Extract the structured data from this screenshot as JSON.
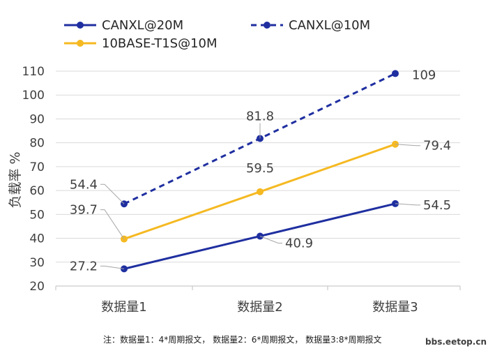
{
  "chart_data": {
    "type": "line",
    "title": "",
    "xlabel": "",
    "ylabel": "负载率 %",
    "categories": [
      "数据量1",
      "数据量2",
      "数据量3"
    ],
    "ylim": [
      20,
      110
    ],
    "yticks": [
      20,
      30,
      40,
      50,
      60,
      70,
      80,
      90,
      100,
      110
    ],
    "grid": "horizontal",
    "legend_position": "top-left",
    "series": [
      {
        "name": "CANXL@20M",
        "values": [
          27.2,
          40.9,
          54.5
        ],
        "labels": [
          "27.2",
          "40.9",
          "54.5"
        ],
        "color": "#1f2fa0",
        "dash": "solid"
      },
      {
        "name": "CANXL@10M",
        "values": [
          54.4,
          81.8,
          109
        ],
        "labels": [
          "54.4",
          "81.8",
          "109"
        ],
        "color": "#1f2fa0",
        "dash": "dashed"
      },
      {
        "name": "10BASE-T1S@10M",
        "values": [
          39.7,
          59.5,
          79.4
        ],
        "labels": [
          "39.7",
          "59.5",
          "79.4"
        ],
        "color": "#f5b921",
        "dash": "solid"
      }
    ],
    "footnote": "注：数据量1：4*周期报文，  数据量2：6*周期报文，  数据量3:8*周期报文",
    "watermark": "bbs.eetop.cn"
  }
}
